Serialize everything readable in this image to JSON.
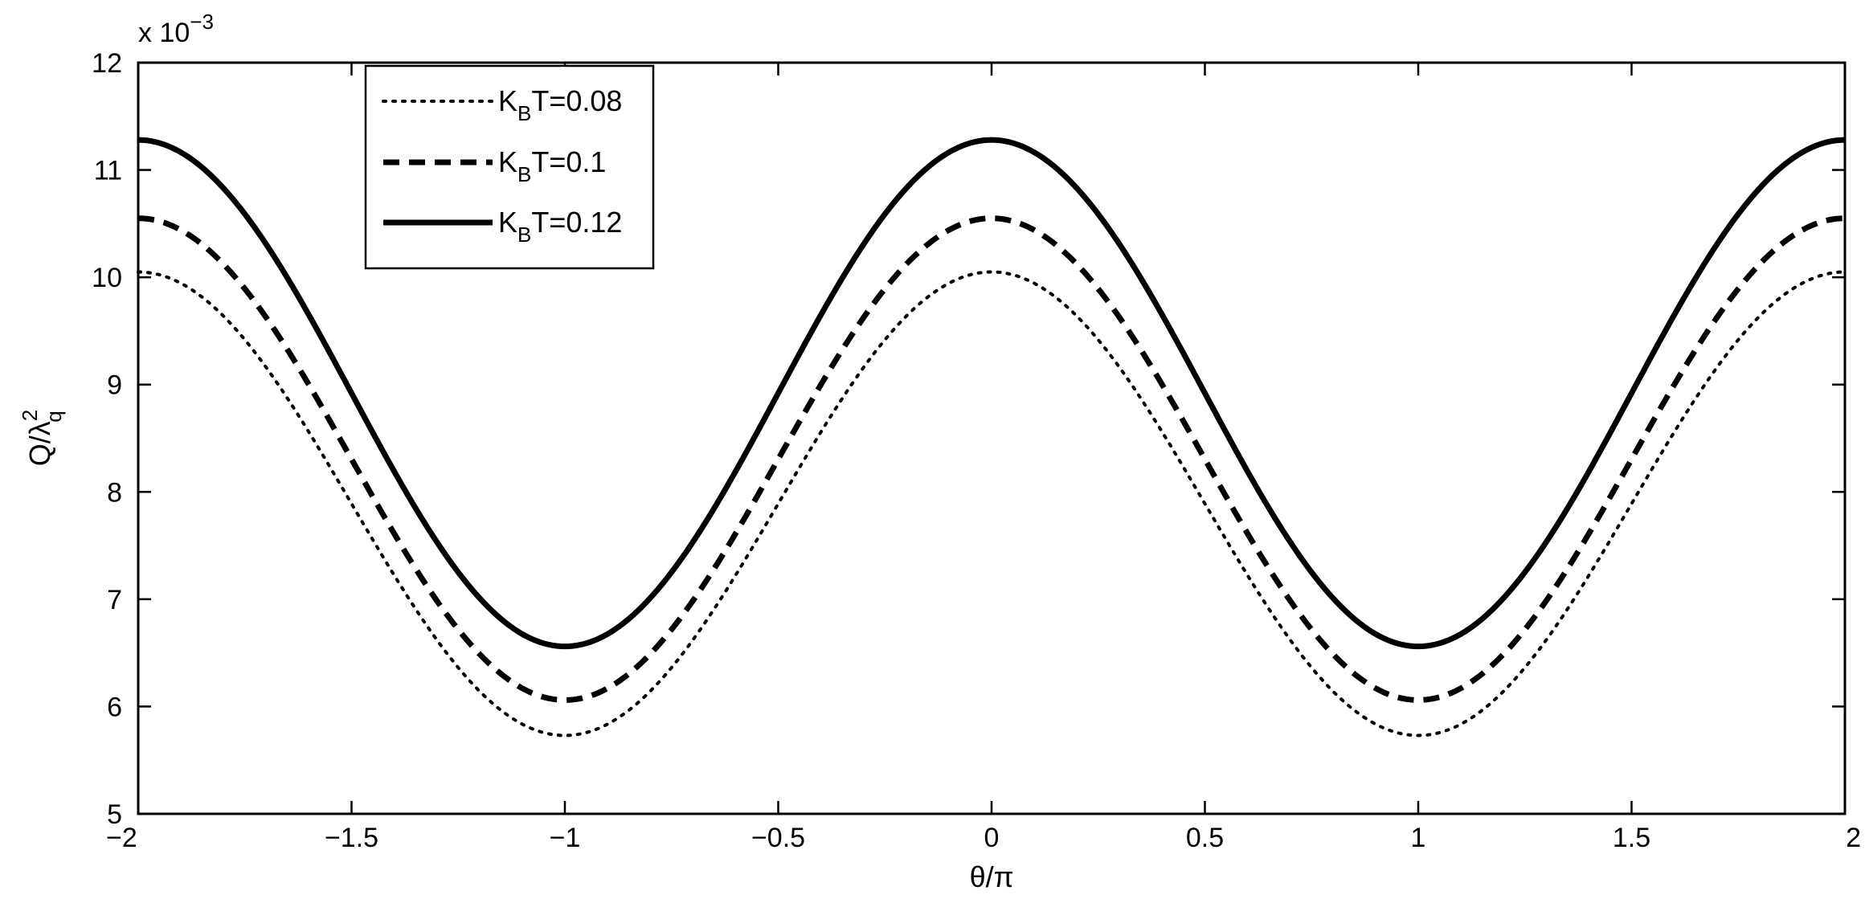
{
  "chart_data": {
    "type": "line",
    "xlabel": "θ/π",
    "ylabel_main": "Q/λ",
    "ylabel_sup": "2",
    "ylabel_sub": "q",
    "y_multiplier_prefix": "x 10",
    "y_multiplier_exp": "−3",
    "xlim": [
      -2,
      2
    ],
    "ylim": [
      5,
      12
    ],
    "xticks": [
      -2,
      -1.5,
      -1,
      -0.5,
      0,
      0.5,
      1,
      1.5,
      2
    ],
    "xtick_labels": [
      "−2",
      "−1.5",
      "−1",
      "−0.5",
      "0",
      "0.5",
      "1",
      "1.5",
      "2"
    ],
    "yticks": [
      5,
      6,
      7,
      8,
      9,
      10,
      11,
      12
    ],
    "ytick_labels": [
      "5",
      "6",
      "7",
      "8",
      "9",
      "10",
      "11",
      "12"
    ],
    "grid": false,
    "legend_position": "top-left",
    "model": "Q = mean + amplitude * cos(pi * x)",
    "series": [
      {
        "name_main": "K",
        "name_sub": "B",
        "name_rest": "T=0.08",
        "style": "dotted",
        "max": 10.05,
        "min": 5.73,
        "color": "#000000"
      },
      {
        "name_main": "K",
        "name_sub": "B",
        "name_rest": "T=0.1",
        "style": "dashed",
        "max": 10.55,
        "min": 6.06,
        "color": "#000000"
      },
      {
        "name_main": "K",
        "name_sub": "B",
        "name_rest": "T=0.12",
        "style": "solid",
        "max": 11.28,
        "min": 6.56,
        "color": "#000000"
      }
    ]
  }
}
